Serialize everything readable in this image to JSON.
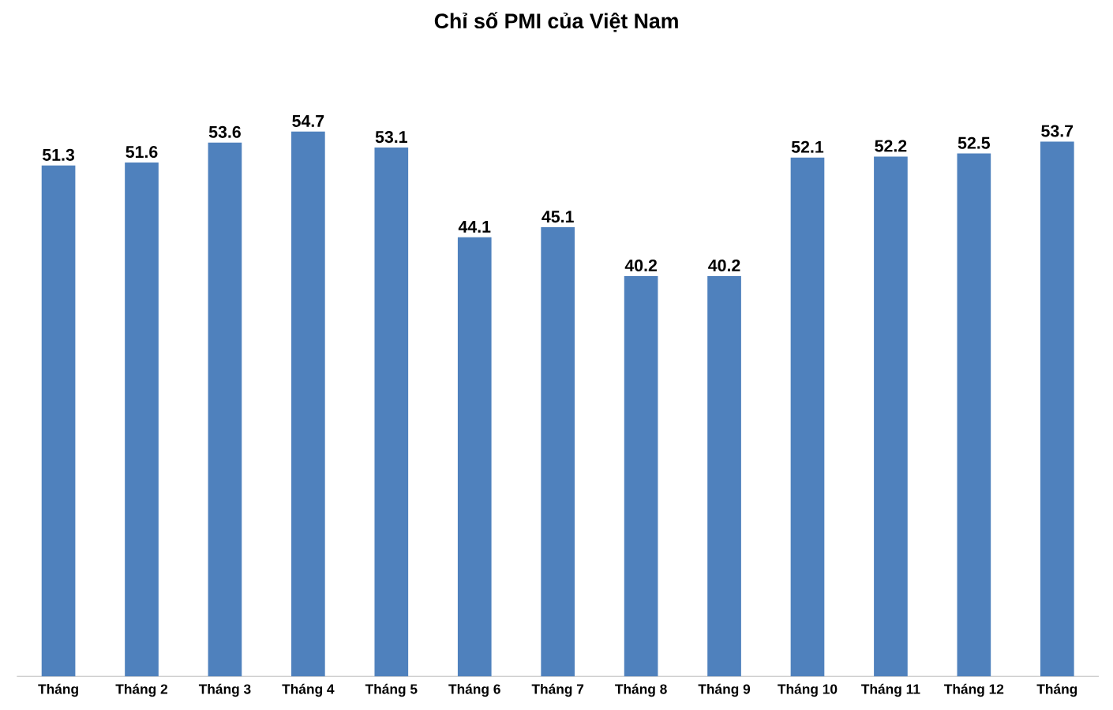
{
  "chart_data": {
    "type": "bar",
    "title": "Chỉ số PMI của Việt Nam",
    "categories": [
      "Tháng",
      "Tháng 2",
      "Tháng 3",
      "Tháng 4",
      "Tháng 5",
      "Tháng 6",
      "Tháng 7",
      "Tháng 8",
      "Tháng 9",
      "Tháng 10",
      "Tháng 11",
      "Tháng 12",
      "Tháng"
    ],
    "values": [
      51.3,
      51.6,
      53.6,
      54.7,
      53.1,
      44.1,
      45.1,
      40.2,
      40.2,
      52.1,
      52.2,
      52.5,
      53.7
    ],
    "color": "#4f81bd",
    "data_labels": true
  }
}
